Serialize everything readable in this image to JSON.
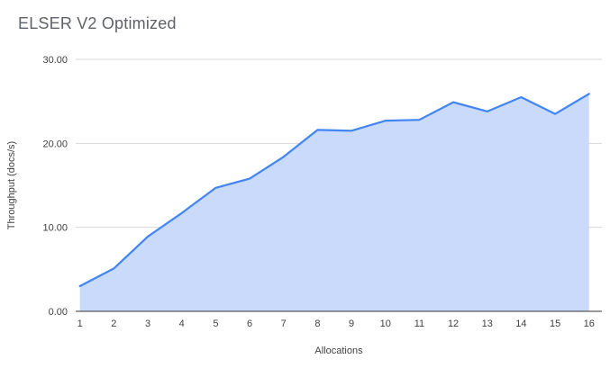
{
  "chart_data": {
    "type": "area",
    "title": "ELSER V2 Optimized",
    "xlabel": "Allocations",
    "ylabel": "Throughput (docs/s)",
    "x": [
      1,
      2,
      3,
      4,
      5,
      6,
      7,
      8,
      9,
      10,
      11,
      12,
      13,
      14,
      15,
      16
    ],
    "values": [
      3.0,
      5.1,
      8.9,
      11.7,
      14.7,
      15.8,
      18.4,
      21.6,
      21.5,
      22.7,
      22.8,
      24.9,
      23.8,
      25.5,
      23.5,
      25.9
    ],
    "ylim": [
      0,
      30
    ],
    "yticks": [
      0,
      10,
      20,
      30
    ],
    "ytick_labels": [
      "0.00",
      "10.00",
      "20.00",
      "30.00"
    ],
    "grid": "horizontal",
    "legend": "none",
    "colors": {
      "line": "#4285f4",
      "fill": "#c9dafb",
      "title_text": "#5f6368",
      "axis_text": "#424242",
      "gridline": "#d9d9d9",
      "axis_line": "#333333",
      "background": "#ffffff"
    }
  }
}
